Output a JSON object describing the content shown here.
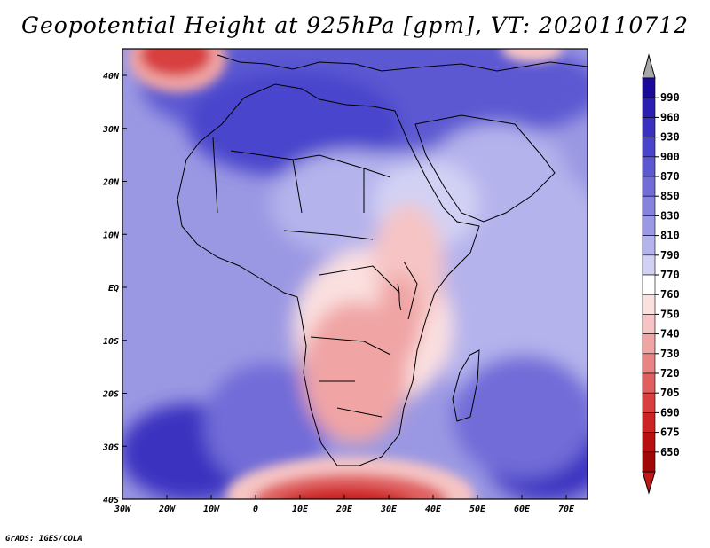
{
  "title": "Geopotential Height at 925hPa [gpm], VT: 2020110712",
  "footer": "GrADS: IGES/COLA",
  "map": {
    "region": "Africa",
    "variable": "Geopotential Height",
    "level": "925hPa",
    "units": "gpm",
    "valid_time": "2020110712",
    "lon_ticks": [
      "30W",
      "20W",
      "10W",
      "0",
      "10E",
      "20E",
      "30E",
      "40E",
      "50E",
      "60E",
      "70E"
    ],
    "lat_ticks": [
      "40N",
      "30N",
      "20N",
      "10N",
      "EQ",
      "10S",
      "20S",
      "30S",
      "40S"
    ]
  },
  "colorbar": {
    "levels": [
      "990",
      "960",
      "930",
      "900",
      "870",
      "850",
      "830",
      "810",
      "790",
      "770",
      "760",
      "750",
      "740",
      "730",
      "720",
      "705",
      "690",
      "675",
      "650"
    ],
    "colors": [
      "#1a0a9a",
      "#2a1fb0",
      "#3a30c0",
      "#4a44cc",
      "#5c58d2",
      "#716cd8",
      "#8682de",
      "#9c99e4",
      "#b5b3ec",
      "#d2d1f4",
      "#ffffff",
      "#fbe0e0",
      "#f6c4c4",
      "#f0a4a4",
      "#e88484",
      "#e06060",
      "#d84040",
      "#cc2424",
      "#b81010",
      "#a00808"
    ],
    "over_color": "#a8a8a8",
    "under_color": "#c01818"
  }
}
